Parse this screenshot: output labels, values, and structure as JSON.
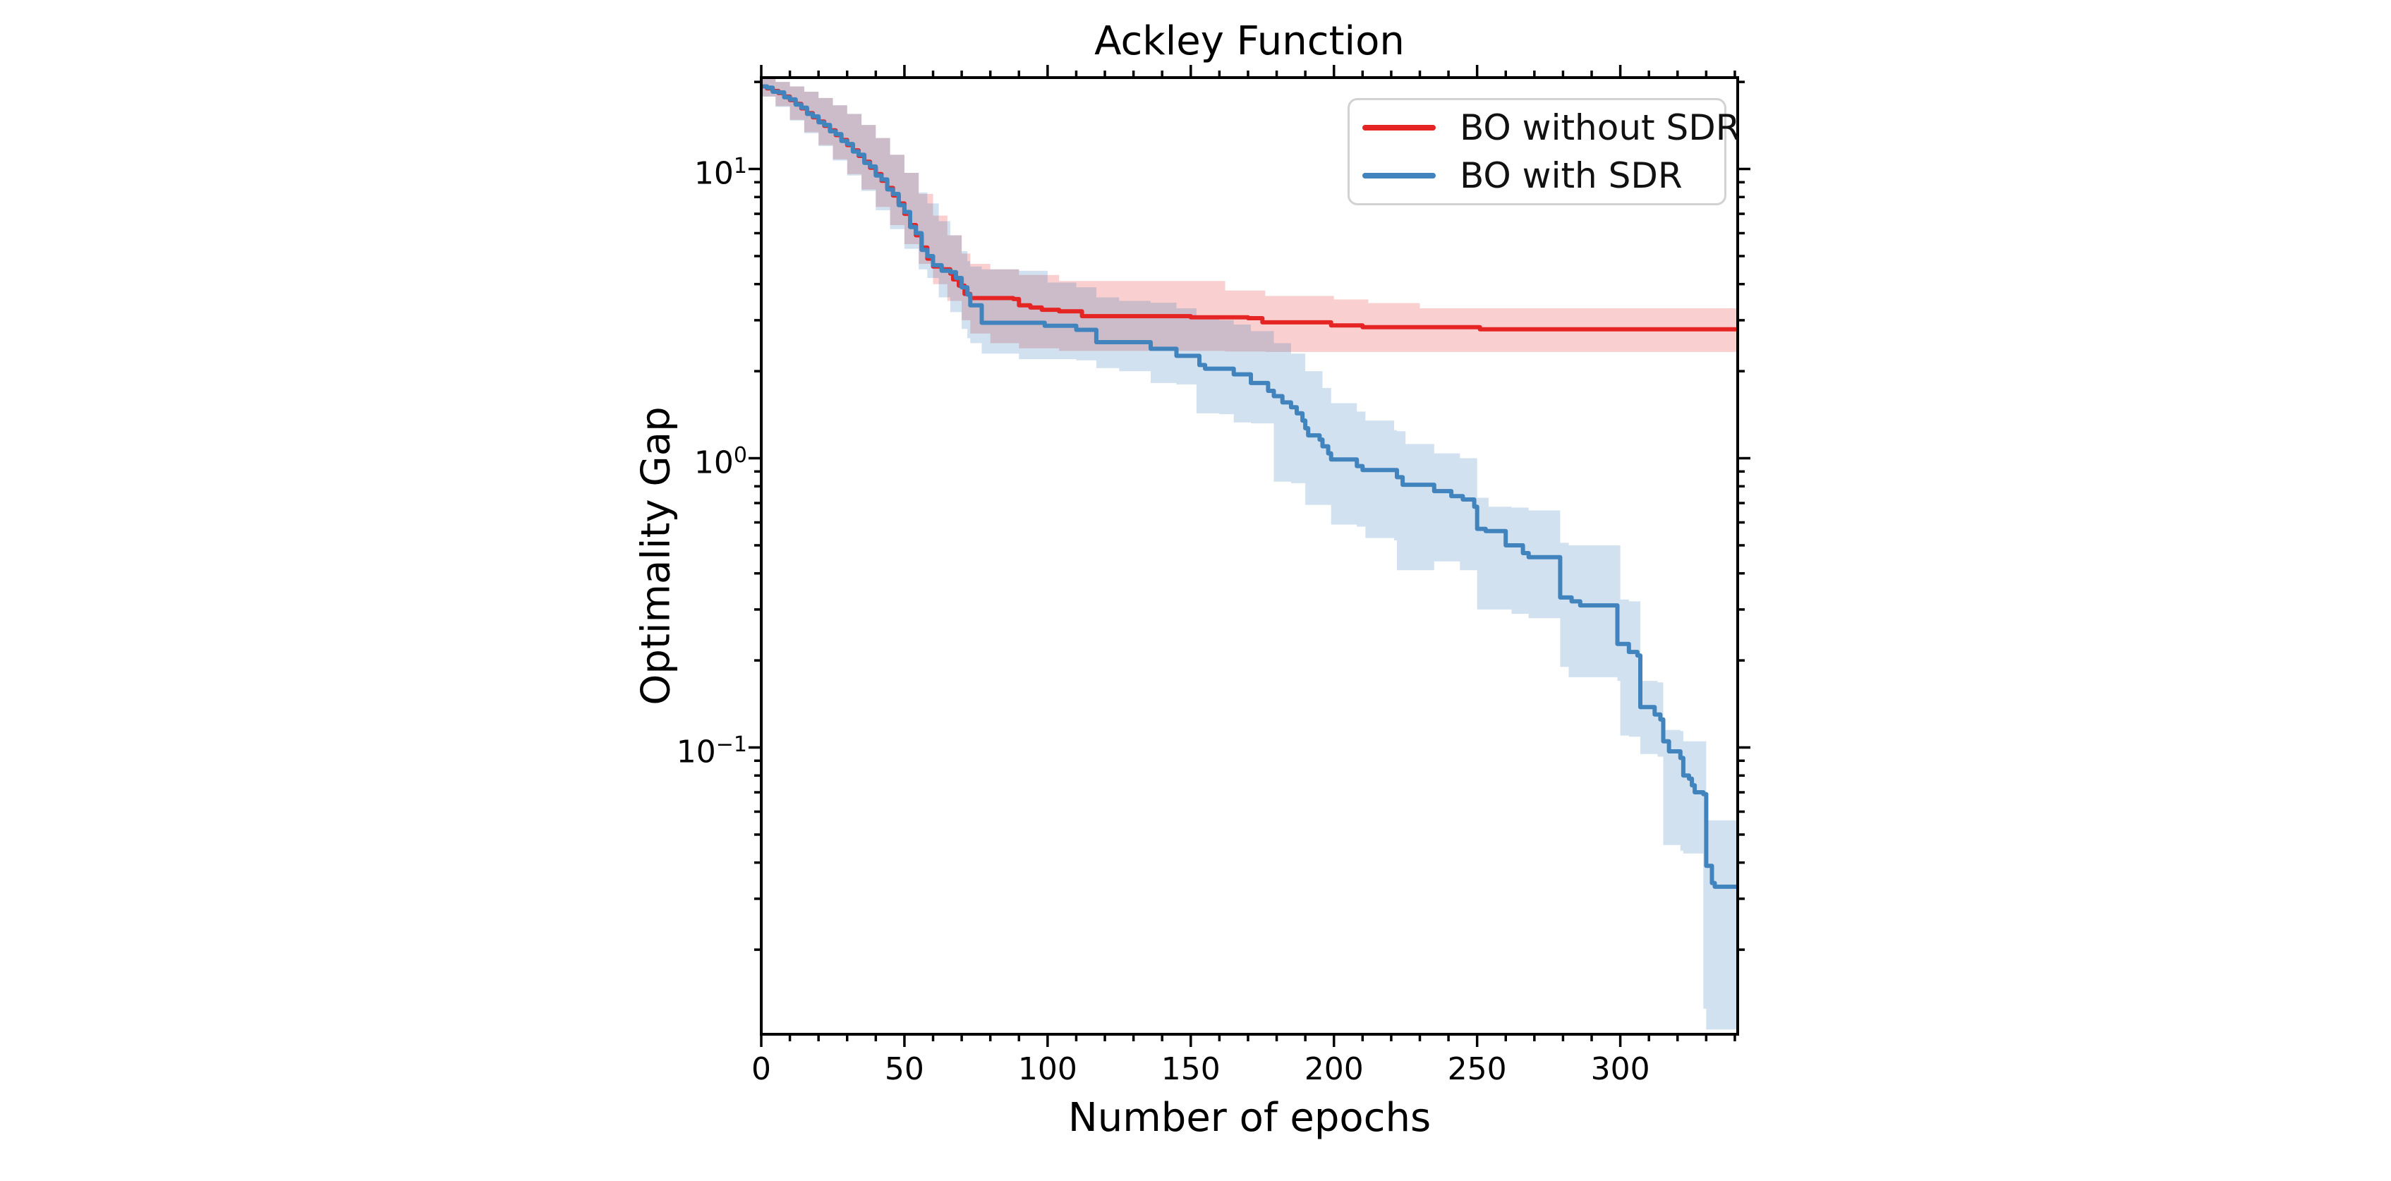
{
  "figure": {
    "title": "Ackley Function",
    "xlabel": "Number of epochs",
    "ylabel": "Optimality Gap",
    "background_color": "#ffffff",
    "spine_color": "#000000"
  },
  "legend": {
    "position": "upper right",
    "items": [
      {
        "label": "BO without SDR",
        "color": "#e42524"
      },
      {
        "label": "BO with SDR",
        "color": "#4083bd"
      }
    ]
  },
  "chart_data": {
    "type": "line",
    "title": "Ackley Function",
    "xlabel": "Number of epochs",
    "ylabel": "Optimality Gap",
    "grid": false,
    "legend_position": "upper right",
    "x_axis": {
      "min": 0,
      "max": 341,
      "major_ticks": [
        0,
        50,
        100,
        150,
        200,
        250,
        300
      ],
      "minor_tick_interval": 10
    },
    "y_axis": {
      "scale": "log",
      "min": 0.0102,
      "max": 20.7,
      "major_ticks": [
        {
          "value": 10,
          "base": "10",
          "exp": "1"
        },
        {
          "value": 1,
          "base": "10",
          "exp": "0"
        },
        {
          "value": 0.1,
          "base": "10",
          "exp": "−1"
        }
      ]
    },
    "series": [
      {
        "name": "BO without SDR",
        "color": "#e42524",
        "band_color": "rgba(228,37,36,0.22)",
        "points": [
          [
            0,
            19.3
          ],
          [
            2,
            19.0
          ],
          [
            4,
            18.6
          ],
          [
            6,
            18.3
          ],
          [
            8,
            17.8
          ],
          [
            10,
            17.3
          ],
          [
            12,
            16.8
          ],
          [
            14,
            16.2
          ],
          [
            16,
            15.6
          ],
          [
            18,
            15.1
          ],
          [
            20,
            14.6
          ],
          [
            22,
            14.1
          ],
          [
            24,
            13.6
          ],
          [
            26,
            13.1
          ],
          [
            28,
            12.6
          ],
          [
            30,
            12.1
          ],
          [
            32,
            11.6
          ],
          [
            34,
            11.1
          ],
          [
            36,
            10.6
          ],
          [
            38,
            10.1
          ],
          [
            40,
            9.6
          ],
          [
            42,
            9.1
          ],
          [
            44,
            8.6
          ],
          [
            46,
            8.1
          ],
          [
            48,
            7.6
          ],
          [
            50,
            7.0
          ],
          [
            52,
            6.4
          ],
          [
            54,
            5.9
          ],
          [
            56,
            5.35
          ],
          [
            58,
            4.9
          ],
          [
            60,
            4.6
          ],
          [
            63,
            4.5
          ],
          [
            66,
            4.35
          ],
          [
            67,
            4.15
          ],
          [
            69,
            3.95
          ],
          [
            71,
            3.7
          ],
          [
            73,
            3.58
          ],
          [
            88,
            3.55
          ],
          [
            90,
            3.38
          ],
          [
            94,
            3.32
          ],
          [
            98,
            3.26
          ],
          [
            104,
            3.22
          ],
          [
            112,
            3.1
          ],
          [
            150,
            3.07
          ],
          [
            170,
            3.05
          ],
          [
            175,
            2.95
          ],
          [
            199,
            2.88
          ],
          [
            210,
            2.84
          ],
          [
            251,
            2.79
          ],
          [
            341,
            2.79
          ]
        ],
        "band": [
          [
            0,
            17.8,
            20.6
          ],
          [
            5,
            16.5,
            20.0
          ],
          [
            10,
            14.8,
            19.3
          ],
          [
            15,
            13.4,
            18.5
          ],
          [
            20,
            12.1,
            17.6
          ],
          [
            25,
            10.8,
            16.6
          ],
          [
            30,
            9.6,
            15.5
          ],
          [
            35,
            8.5,
            14.2
          ],
          [
            40,
            7.4,
            12.8
          ],
          [
            45,
            6.4,
            11.2
          ],
          [
            50,
            5.5,
            9.7
          ],
          [
            55,
            4.7,
            8.2
          ],
          [
            60,
            4.0,
            6.9
          ],
          [
            65,
            3.5,
            5.9
          ],
          [
            70,
            3.0,
            5.1
          ],
          [
            73,
            2.7,
            4.7
          ],
          [
            80,
            2.5,
            4.5
          ],
          [
            90,
            2.4,
            4.3
          ],
          [
            104,
            2.35,
            4.1
          ],
          [
            162,
            2.34,
            3.8
          ],
          [
            176,
            2.33,
            3.64
          ],
          [
            200,
            2.33,
            3.54
          ],
          [
            212,
            2.33,
            3.44
          ],
          [
            230,
            2.33,
            3.3
          ],
          [
            341,
            2.33,
            3.3
          ]
        ]
      },
      {
        "name": "BO with SDR",
        "color": "#4083bd",
        "band_color": "rgba(64,131,189,0.24)",
        "points": [
          [
            0,
            19.3
          ],
          [
            2,
            19.1
          ],
          [
            4,
            18.5
          ],
          [
            6,
            18.4
          ],
          [
            8,
            17.7
          ],
          [
            10,
            17.4
          ],
          [
            12,
            16.7
          ],
          [
            14,
            16.3
          ],
          [
            16,
            15.5
          ],
          [
            18,
            15.2
          ],
          [
            20,
            14.5
          ],
          [
            22,
            14.2
          ],
          [
            24,
            13.5
          ],
          [
            26,
            13.2
          ],
          [
            28,
            12.5
          ],
          [
            30,
            12.2
          ],
          [
            32,
            11.5
          ],
          [
            34,
            11.2
          ],
          [
            36,
            10.5
          ],
          [
            38,
            10.2
          ],
          [
            40,
            9.5
          ],
          [
            42,
            9.2
          ],
          [
            44,
            8.5
          ],
          [
            46,
            8.2
          ],
          [
            48,
            7.5
          ],
          [
            50,
            7.1
          ],
          [
            52,
            6.3
          ],
          [
            54,
            6.0
          ],
          [
            56,
            5.25
          ],
          [
            58,
            5.0
          ],
          [
            60,
            4.65
          ],
          [
            63,
            4.45
          ],
          [
            66,
            4.4
          ],
          [
            68,
            4.2
          ],
          [
            70,
            3.9
          ],
          [
            72,
            3.68
          ],
          [
            73,
            3.38
          ],
          [
            77,
            2.94
          ],
          [
            99,
            2.87
          ],
          [
            110,
            2.78
          ],
          [
            117,
            2.52
          ],
          [
            136,
            2.39
          ],
          [
            145,
            2.26
          ],
          [
            153,
            2.1
          ],
          [
            155,
            2.04
          ],
          [
            165,
            1.95
          ],
          [
            171,
            1.82
          ],
          [
            177,
            1.71
          ],
          [
            179,
            1.64
          ],
          [
            182,
            1.56
          ],
          [
            185,
            1.5
          ],
          [
            187,
            1.43
          ],
          [
            189,
            1.35
          ],
          [
            190,
            1.27
          ],
          [
            191,
            1.2
          ],
          [
            195,
            1.16
          ],
          [
            196,
            1.1
          ],
          [
            198,
            1.04
          ],
          [
            199,
            0.99
          ],
          [
            208,
            0.94
          ],
          [
            210,
            0.91
          ],
          [
            222,
            0.86
          ],
          [
            224,
            0.81
          ],
          [
            235,
            0.77
          ],
          [
            241,
            0.74
          ],
          [
            245,
            0.72
          ],
          [
            249,
            0.68
          ],
          [
            250,
            0.57
          ],
          [
            253,
            0.56
          ],
          [
            260,
            0.5
          ],
          [
            266,
            0.47
          ],
          [
            268,
            0.455
          ],
          [
            279,
            0.33
          ],
          [
            283,
            0.32
          ],
          [
            286,
            0.31
          ],
          [
            299,
            0.228
          ],
          [
            303,
            0.214
          ],
          [
            306,
            0.208
          ],
          [
            307,
            0.138
          ],
          [
            312,
            0.13
          ],
          [
            314,
            0.125
          ],
          [
            315,
            0.105
          ],
          [
            317,
            0.097
          ],
          [
            321,
            0.092
          ],
          [
            322,
            0.08
          ],
          [
            324,
            0.078
          ],
          [
            325,
            0.074
          ],
          [
            326,
            0.07
          ],
          [
            329,
            0.069
          ],
          [
            330,
            0.039
          ],
          [
            332,
            0.034
          ],
          [
            333,
            0.033
          ],
          [
            341,
            0.033
          ]
        ],
        "band": [
          [
            0,
            17.8,
            20.6
          ],
          [
            5,
            16.4,
            20.0
          ],
          [
            10,
            14.7,
            19.3
          ],
          [
            15,
            13.3,
            18.5
          ],
          [
            20,
            12.0,
            17.6
          ],
          [
            25,
            10.7,
            16.6
          ],
          [
            30,
            9.5,
            15.5
          ],
          [
            35,
            8.4,
            14.2
          ],
          [
            40,
            7.2,
            12.8
          ],
          [
            45,
            6.2,
            11.2
          ],
          [
            50,
            5.3,
            9.7
          ],
          [
            55,
            4.5,
            8.3
          ],
          [
            58,
            4.2,
            7.6
          ],
          [
            62,
            3.6,
            6.6
          ],
          [
            66,
            3.2,
            5.9
          ],
          [
            70,
            2.8,
            5.2
          ],
          [
            72,
            2.6,
            4.8
          ],
          [
            73,
            2.5,
            4.6
          ],
          [
            77,
            2.3,
            4.5
          ],
          [
            90,
            2.2,
            4.45
          ],
          [
            100,
            2.2,
            4.05
          ],
          [
            110,
            2.18,
            3.9
          ],
          [
            117,
            2.05,
            3.6
          ],
          [
            125,
            2.0,
            3.5
          ],
          [
            136,
            1.82,
            3.45
          ],
          [
            145,
            1.8,
            3.3
          ],
          [
            152,
            1.43,
            3.1
          ],
          [
            160,
            1.42,
            3.0
          ],
          [
            165,
            1.33,
            2.9
          ],
          [
            171,
            1.32,
            2.75
          ],
          [
            179,
            0.83,
            2.5
          ],
          [
            185,
            0.82,
            2.3
          ],
          [
            190,
            0.69,
            2.0
          ],
          [
            196,
            0.69,
            1.75
          ],
          [
            199,
            0.59,
            1.55
          ],
          [
            208,
            0.58,
            1.45
          ],
          [
            211,
            0.53,
            1.35
          ],
          [
            221,
            0.52,
            1.25
          ],
          [
            222,
            0.41,
            1.24
          ],
          [
            225,
            0.41,
            1.12
          ],
          [
            235,
            0.44,
            1.04
          ],
          [
            244,
            0.41,
            1.0
          ],
          [
            250,
            0.3,
            0.73
          ],
          [
            254,
            0.3,
            0.68
          ],
          [
            262,
            0.29,
            0.675
          ],
          [
            268,
            0.28,
            0.66
          ],
          [
            279,
            0.19,
            0.51
          ],
          [
            282,
            0.175,
            0.5
          ],
          [
            299,
            0.17,
            0.5
          ],
          [
            300,
            0.11,
            0.325
          ],
          [
            303,
            0.109,
            0.32
          ],
          [
            307,
            0.095,
            0.17
          ],
          [
            313,
            0.093,
            0.168
          ],
          [
            315,
            0.046,
            0.115
          ],
          [
            321,
            0.044,
            0.114
          ],
          [
            322,
            0.043,
            0.105
          ],
          [
            329,
            0.0125,
            0.105
          ],
          [
            330,
            0.0106,
            0.056
          ],
          [
            341,
            0.0104,
            0.056
          ]
        ]
      }
    ]
  }
}
